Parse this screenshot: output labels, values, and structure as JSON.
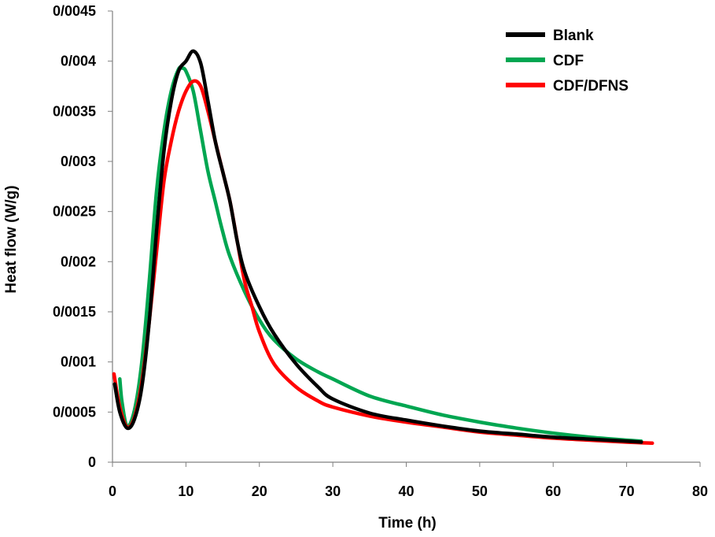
{
  "chart_data": {
    "type": "line",
    "xlabel": "Time (h)",
    "ylabel": "Heat flow (W/g)",
    "xlim": [
      0,
      80
    ],
    "ylim": [
      0,
      0.0045
    ],
    "x_ticks": [
      0,
      10,
      20,
      30,
      40,
      50,
      60,
      70,
      80
    ],
    "x_tick_labels": [
      "0",
      "10",
      "20",
      "30",
      "40",
      "50",
      "60",
      "70",
      "80"
    ],
    "y_ticks": [
      0,
      0.0005,
      0.001,
      0.0015,
      0.002,
      0.0025,
      0.003,
      0.0035,
      0.004,
      0.0045
    ],
    "y_tick_labels": [
      "0",
      "0/0005",
      "0/001",
      "0/0015",
      "0/002",
      "0/0025",
      "0/003",
      "0/0035",
      "0/004",
      "0/0045"
    ],
    "grid": false,
    "legend_position": "top-right",
    "series": [
      {
        "name": "Blank",
        "color": "#000000",
        "points": [
          [
            0.3,
            0.00078
          ],
          [
            1,
            0.0005
          ],
          [
            2,
            0.00034
          ],
          [
            3,
            0.00043
          ],
          [
            4,
            0.00075
          ],
          [
            5,
            0.0014
          ],
          [
            6,
            0.0023
          ],
          [
            7,
            0.0031
          ],
          [
            8,
            0.0036
          ],
          [
            9,
            0.0039
          ],
          [
            10,
            0.004
          ],
          [
            11,
            0.0041
          ],
          [
            12,
            0.00398
          ],
          [
            13,
            0.0036
          ],
          [
            14,
            0.0032
          ],
          [
            15,
            0.0029
          ],
          [
            16,
            0.0026
          ],
          [
            17,
            0.0022
          ],
          [
            18,
            0.0019
          ],
          [
            20,
            0.00155
          ],
          [
            22,
            0.00128
          ],
          [
            25,
            0.00098
          ],
          [
            28,
            0.00075
          ],
          [
            30,
            0.00063
          ],
          [
            35,
            0.00049
          ],
          [
            40,
            0.00042
          ],
          [
            45,
            0.00036
          ],
          [
            50,
            0.00031
          ],
          [
            55,
            0.00028
          ],
          [
            60,
            0.00025
          ],
          [
            65,
            0.00023
          ],
          [
            70,
            0.00021
          ],
          [
            72,
            0.0002
          ]
        ]
      },
      {
        "name": "CDF",
        "color": "#00a651",
        "points": [
          [
            1,
            0.00083
          ],
          [
            1.3,
            0.0006
          ],
          [
            2,
            0.00036
          ],
          [
            3,
            0.00052
          ],
          [
            4,
            0.001
          ],
          [
            5,
            0.0018
          ],
          [
            6,
            0.0027
          ],
          [
            7,
            0.0033
          ],
          [
            8,
            0.0037
          ],
          [
            9,
            0.00392
          ],
          [
            9.5,
            0.00393
          ],
          [
            10,
            0.0039
          ],
          [
            11,
            0.0037
          ],
          [
            12,
            0.0033
          ],
          [
            13,
            0.0029
          ],
          [
            14,
            0.0026
          ],
          [
            15,
            0.0023
          ],
          [
            16,
            0.00205
          ],
          [
            18,
            0.0017
          ],
          [
            20,
            0.00142
          ],
          [
            22,
            0.00122
          ],
          [
            25,
            0.00103
          ],
          [
            28,
            0.0009
          ],
          [
            30,
            0.00083
          ],
          [
            35,
            0.00066
          ],
          [
            40,
            0.00056
          ],
          [
            45,
            0.00047
          ],
          [
            50,
            0.0004
          ],
          [
            55,
            0.00034
          ],
          [
            60,
            0.00029
          ],
          [
            65,
            0.00025
          ],
          [
            70,
            0.00022
          ],
          [
            72,
            0.00021
          ]
        ]
      },
      {
        "name": "CDF/DFNS",
        "color": "#ff0000",
        "points": [
          [
            0.2,
            0.00088
          ],
          [
            1,
            0.00055
          ],
          [
            2,
            0.00035
          ],
          [
            3,
            0.00045
          ],
          [
            4,
            0.0008
          ],
          [
            5,
            0.0014
          ],
          [
            6,
            0.0021
          ],
          [
            7,
            0.0028
          ],
          [
            8,
            0.0032
          ],
          [
            9,
            0.0035
          ],
          [
            10,
            0.0037
          ],
          [
            11,
            0.0038
          ],
          [
            12,
            0.00375
          ],
          [
            13,
            0.0035
          ],
          [
            14,
            0.0032
          ],
          [
            15,
            0.0029
          ],
          [
            16,
            0.0026
          ],
          [
            17,
            0.0022
          ],
          [
            18,
            0.0018
          ],
          [
            19,
            0.00155
          ],
          [
            20,
            0.0013
          ],
          [
            22,
            0.00098
          ],
          [
            25,
            0.00075
          ],
          [
            28,
            0.00061
          ],
          [
            30,
            0.00055
          ],
          [
            35,
            0.00046
          ],
          [
            40,
            0.0004
          ],
          [
            45,
            0.00035
          ],
          [
            50,
            0.0003
          ],
          [
            55,
            0.00027
          ],
          [
            60,
            0.00024
          ],
          [
            65,
            0.00022
          ],
          [
            70,
            0.0002
          ],
          [
            73.5,
            0.00019
          ]
        ]
      }
    ]
  }
}
